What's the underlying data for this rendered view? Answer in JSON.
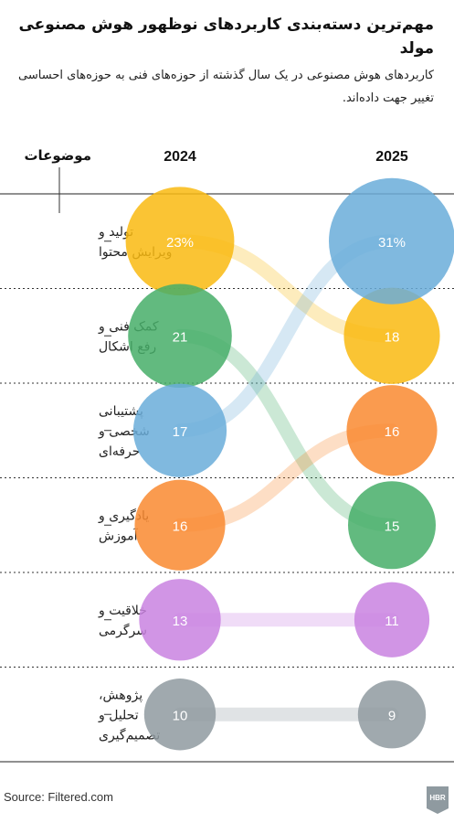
{
  "title": "مهم‌ترین دسته‌بندی کاربردهای نوظهور هوش مصنوعی مولد",
  "subtitle": "کاربردهای هوش مصنوعی در یک سال گذشته از حوزه‌های فنی به حوزه‌های احساسی تغییر جهت داده‌اند.",
  "source": "Source: Filtered.com",
  "logo_text": "HBR",
  "colors": {
    "content": "#F9BA11",
    "support": "#46AE68",
    "personal": "#6AADD9",
    "learning": "#F98A30",
    "creativity": "#C983E1",
    "research": "#8F9AA0"
  },
  "chart_data": {
    "type": "bump",
    "title": "مهم‌ترین دسته‌بندی کاربردهای نوظهور هوش مصنوعی مولد",
    "category_header": "موضوعات",
    "columns": [
      "2024",
      "2025"
    ],
    "rows": [
      {
        "id": "content",
        "label_lines": [
          "تولید و",
          "ویرایش محتوا"
        ]
      },
      {
        "id": "support",
        "label_lines": [
          "کمک فنی و",
          "رفع اشکال"
        ]
      },
      {
        "id": "personal",
        "label_lines": [
          "پشتیبانی",
          "شخصی و",
          "حرفه‌ای"
        ]
      },
      {
        "id": "learning",
        "label_lines": [
          "یادگیری و",
          "آموزش"
        ]
      },
      {
        "id": "creativity",
        "label_lines": [
          "خلاقیت و",
          "سرگرمی"
        ]
      },
      {
        "id": "research",
        "label_lines": [
          "پژوهش،",
          "تحلیل و",
          "تصمیم‌گیری"
        ]
      }
    ],
    "series": [
      {
        "id": "content",
        "color": "#F9BA11",
        "values": [
          23,
          18
        ],
        "labels": [
          "23%",
          "18"
        ],
        "ranks": [
          1,
          2
        ]
      },
      {
        "id": "support",
        "color": "#46AE68",
        "values": [
          21,
          15
        ],
        "labels": [
          "21",
          "15"
        ],
        "ranks": [
          2,
          4
        ]
      },
      {
        "id": "personal",
        "color": "#6AADD9",
        "values": [
          17,
          31
        ],
        "labels": [
          "17",
          "31%"
        ],
        "ranks": [
          3,
          1
        ]
      },
      {
        "id": "learning",
        "color": "#F98A30",
        "values": [
          16,
          16
        ],
        "labels": [
          "16",
          "16"
        ],
        "ranks": [
          4,
          3
        ]
      },
      {
        "id": "creativity",
        "color": "#C983E1",
        "values": [
          13,
          11
        ],
        "labels": [
          "13",
          "11"
        ],
        "ranks": [
          5,
          5
        ]
      },
      {
        "id": "research",
        "color": "#8F9AA0",
        "values": [
          10,
          9
        ],
        "labels": [
          "10",
          "9"
        ],
        "ranks": [
          6,
          6
        ]
      }
    ],
    "value_unit": "%"
  }
}
